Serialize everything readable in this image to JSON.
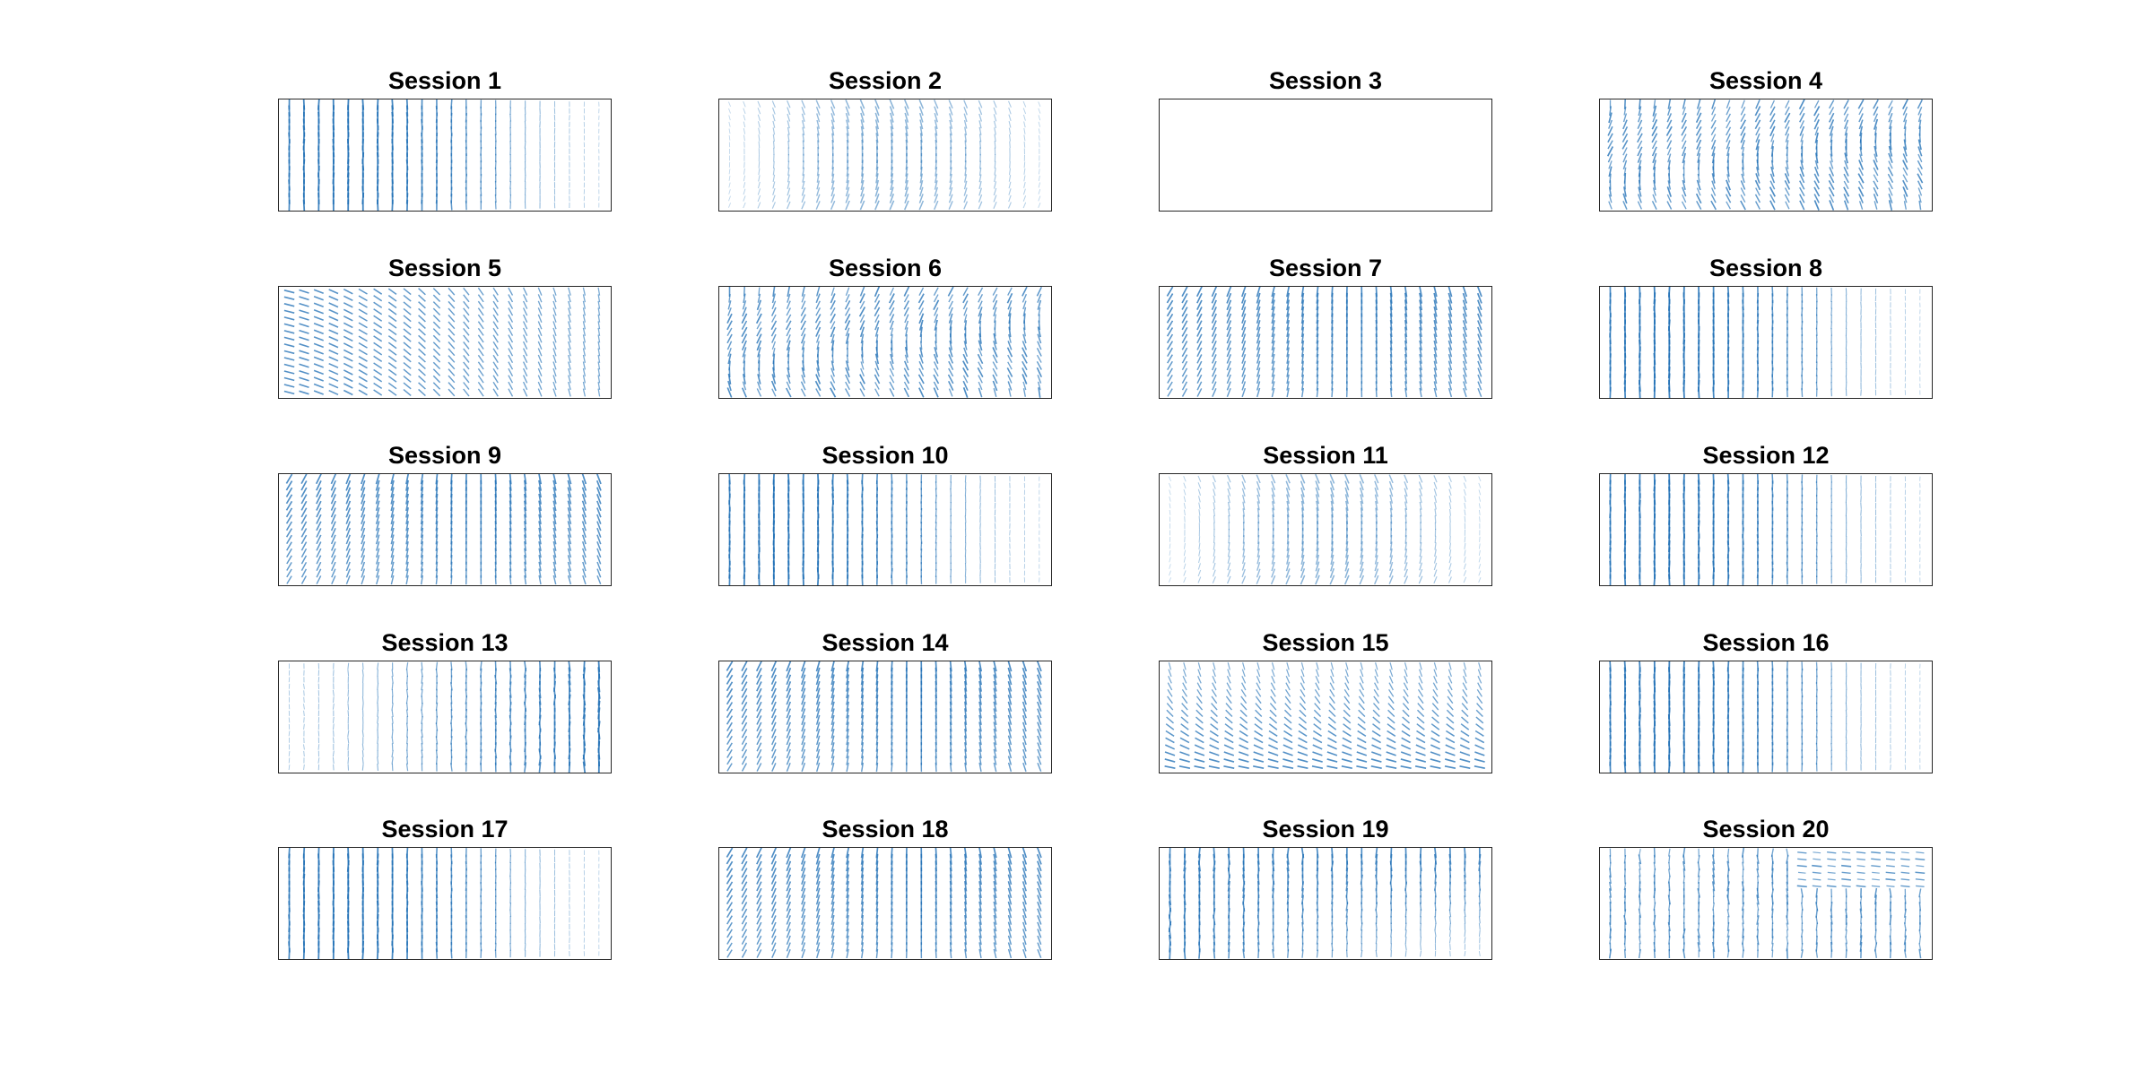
{
  "chart_data": {
    "type": "quiver",
    "grid": false,
    "axes_visible": false,
    "arrow_color": "#1f6fb5",
    "layout": {
      "rows": 5,
      "cols": 4
    },
    "panels": [
      {
        "title": "Session 1",
        "pattern": "vertical",
        "vectors": true
      },
      {
        "title": "Session 2",
        "pattern": "faint-right",
        "vectors": true
      },
      {
        "title": "Session 3",
        "pattern": "none",
        "vectors": false
      },
      {
        "title": "Session 4",
        "pattern": "wavy",
        "vectors": true
      },
      {
        "title": "Session 5",
        "pattern": "horizontal-left",
        "vectors": true
      },
      {
        "title": "Session 6",
        "pattern": "wavy",
        "vectors": true
      },
      {
        "title": "Session 7",
        "pattern": "diagonal",
        "vectors": true
      },
      {
        "title": "Session 8",
        "pattern": "vertical",
        "vectors": true
      },
      {
        "title": "Session 9",
        "pattern": "diagonal",
        "vectors": true
      },
      {
        "title": "Session 10",
        "pattern": "vertical",
        "vectors": true
      },
      {
        "title": "Session 11",
        "pattern": "faint-right",
        "vectors": true
      },
      {
        "title": "Session 12",
        "pattern": "vertical",
        "vectors": true
      },
      {
        "title": "Session 13",
        "pattern": "vertical-right",
        "vectors": true
      },
      {
        "title": "Session 14",
        "pattern": "diagonal",
        "vectors": true
      },
      {
        "title": "Session 15",
        "pattern": "horizontal-bottom",
        "vectors": true
      },
      {
        "title": "Session 16",
        "pattern": "vertical",
        "vectors": true
      },
      {
        "title": "Session 17",
        "pattern": "vertical",
        "vectors": true
      },
      {
        "title": "Session 18",
        "pattern": "diagonal",
        "vectors": true
      },
      {
        "title": "Session 19",
        "pattern": "vertical-left",
        "vectors": true
      },
      {
        "title": "Session 20",
        "pattern": "horizontal-top-right",
        "vectors": true
      }
    ]
  }
}
